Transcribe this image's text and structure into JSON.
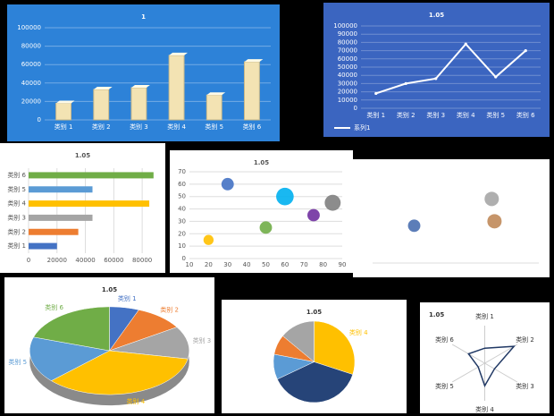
{
  "chart_data": [
    {
      "type": "bar3d",
      "title": "1",
      "categories": [
        "类别 1",
        "类别 2",
        "类别 3",
        "类别 4",
        "类别 5",
        "类别 6"
      ],
      "values": [
        18000,
        33000,
        35000,
        70000,
        27000,
        63000
      ],
      "color": "#f3e3b3",
      "ylim": [
        0,
        100000
      ],
      "yticks": [
        0,
        20000,
        40000,
        60000,
        80000,
        100000
      ],
      "grid": true
    },
    {
      "type": "line",
      "title": "1.05",
      "categories": [
        "类别 1",
        "类别 2",
        "类别 3",
        "类别 4",
        "类别 5",
        "类别 6"
      ],
      "series": [
        {
          "name": "系列1",
          "color": "#ffffff",
          "values": [
            18000,
            30000,
            36000,
            78000,
            38000,
            70000
          ]
        }
      ],
      "ylim": [
        0,
        100000
      ],
      "yticks": [
        0,
        10000,
        20000,
        30000,
        40000,
        50000,
        60000,
        70000,
        80000,
        90000,
        100000
      ],
      "grid": true
    },
    {
      "type": "hbar",
      "title": "1.05",
      "categories": [
        "类别 1",
        "类别 2",
        "类别 3",
        "类别 4",
        "类别 5",
        "类别 6"
      ],
      "values": [
        20000,
        35000,
        45000,
        85000,
        45000,
        88000
      ],
      "colors": [
        "#4472c4",
        "#ed7d31",
        "#a5a5a5",
        "#ffc000",
        "#5b9bd5",
        "#70ad47"
      ],
      "xlim": [
        0,
        90000
      ],
      "xticks": [
        0,
        20000,
        40000,
        60000,
        80000
      ],
      "grid": true
    },
    {
      "type": "bubble",
      "title": "1.05",
      "x": [
        30,
        60,
        85,
        75,
        50,
        20
      ],
      "values": [
        60,
        50,
        45,
        35,
        25,
        15
      ],
      "sizes": [
        3,
        6,
        5,
        3,
        3,
        2
      ],
      "colors": [
        "#4472c4",
        "#00b0f0",
        "#7f7f7f",
        "#7030a0",
        "#70ad47",
        "#ffc000"
      ],
      "xlim": [
        10,
        90
      ],
      "xticks": [
        10,
        20,
        30,
        40,
        50,
        60,
        70,
        80,
        90
      ],
      "ylim": [
        0,
        70
      ],
      "yticks": [
        0,
        10,
        20,
        30,
        40,
        50,
        60,
        70
      ],
      "grid": true
    },
    {
      "type": "bubble",
      "x": [
        1.5,
        4.3,
        4.4
      ],
      "values": [
        2.5,
        4.3,
        2.8
      ],
      "sizes": [
        3,
        4,
        4
      ],
      "colors": [
        "#4a6fb0",
        "#a6a6a6",
        "#c0895a"
      ],
      "xlim": [
        0,
        6
      ],
      "ylim": [
        0,
        6
      ],
      "grid": true
    },
    {
      "type": "pie3d",
      "title": "1.05",
      "categories": [
        "类别 1",
        "类别 2",
        "类别 3",
        "类别 4",
        "类别 5",
        "类别 6"
      ],
      "values": [
        6,
        10,
        12,
        35,
        17,
        20
      ],
      "colors": [
        "#4472c4",
        "#ed7d31",
        "#a5a5a5",
        "#ffc000",
        "#5b9bd5",
        "#70ad47"
      ]
    },
    {
      "type": "pie",
      "title": "1.05",
      "categories": [
        "类别 4",
        null,
        null,
        null,
        null
      ],
      "values": [
        30,
        38,
        10,
        8,
        14
      ],
      "colors": [
        "#ffc000",
        "#264478",
        "#5b9bd5",
        "#ed7d31",
        "#a5a5a5"
      ]
    },
    {
      "type": "radar",
      "title": "1.05",
      "categories": [
        "类别 1",
        "类别 2",
        "类别 3",
        "类别 4",
        "类别 5",
        "类别 6"
      ],
      "values": [
        40000,
        90000,
        30000,
        60000,
        20000,
        50000
      ],
      "color": "#203864",
      "ylim": [
        0,
        100000
      ]
    }
  ]
}
